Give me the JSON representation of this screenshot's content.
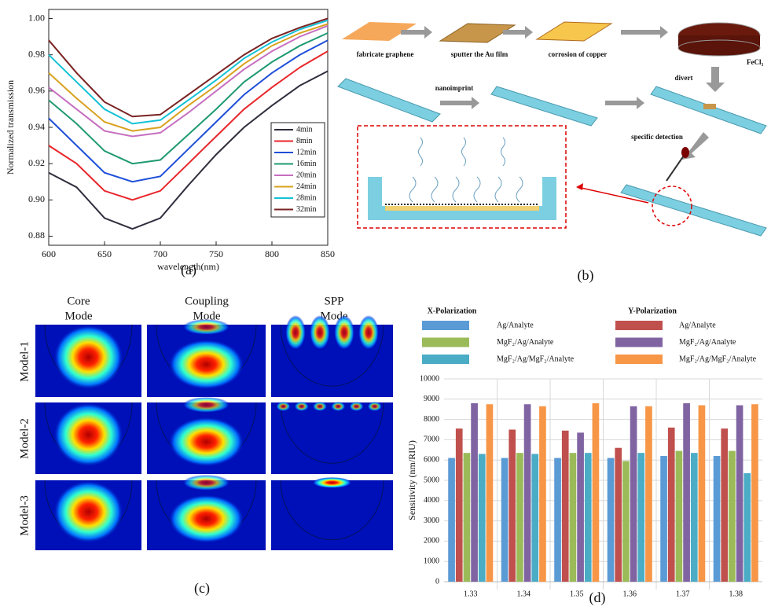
{
  "chart_data": [
    {
      "type": "line",
      "xlabel": "wavelength(nm)",
      "ylabel": "Normalized transmission",
      "x": [
        600,
        625,
        650,
        675,
        700,
        725,
        750,
        775,
        800,
        825,
        850
      ],
      "xlim": [
        600,
        850
      ],
      "xticks": [
        600,
        650,
        700,
        750,
        800,
        850
      ],
      "ylim": [
        0.875,
        1.005
      ],
      "yticks": [
        0.88,
        {
          "value": 0.9,
          "label": "0.90"
        },
        0.92,
        0.94,
        0.96,
        0.98,
        {
          "value": 1.0,
          "label": "1.00"
        }
      ],
      "series": [
        {
          "name": "4min",
          "color": "#2e2e3e",
          "values": [
            0.915,
            0.907,
            0.89,
            0.884,
            0.89,
            0.908,
            0.925,
            0.94,
            0.952,
            0.963,
            0.971
          ]
        },
        {
          "name": "8min",
          "color": "#e8262a",
          "values": [
            0.93,
            0.92,
            0.905,
            0.9,
            0.905,
            0.92,
            0.935,
            0.95,
            0.962,
            0.973,
            0.982
          ]
        },
        {
          "name": "12min",
          "color": "#1f4fd8",
          "values": [
            0.945,
            0.93,
            0.915,
            0.91,
            0.913,
            0.928,
            0.943,
            0.958,
            0.97,
            0.98,
            0.988
          ]
        },
        {
          "name": "16min",
          "color": "#1f9a72",
          "values": [
            0.955,
            0.942,
            0.927,
            0.92,
            0.922,
            0.936,
            0.95,
            0.965,
            0.976,
            0.985,
            0.992
          ]
        },
        {
          "name": "20min",
          "color": "#c66fc0",
          "values": [
            0.962,
            0.95,
            0.938,
            0.935,
            0.937,
            0.948,
            0.96,
            0.972,
            0.982,
            0.99,
            0.996
          ]
        },
        {
          "name": "24min",
          "color": "#d8a21e",
          "values": [
            0.97,
            0.956,
            0.943,
            0.938,
            0.94,
            0.952,
            0.963,
            0.975,
            0.985,
            0.992,
            0.997
          ]
        },
        {
          "name": "28min",
          "color": "#13c2d6",
          "values": [
            0.98,
            0.965,
            0.95,
            0.942,
            0.944,
            0.955,
            0.966,
            0.978,
            0.987,
            0.994,
            0.999
          ]
        },
        {
          "name": "32min",
          "color": "#7a2323",
          "values": [
            0.988,
            0.97,
            0.954,
            0.946,
            0.947,
            0.958,
            0.969,
            0.98,
            0.989,
            0.995,
            1.0
          ]
        }
      ]
    },
    {
      "type": "bar",
      "ylabel": "Sensitivity (nm/RIU)",
      "legend_titles": [
        "X-Polarization",
        "Y-Polarization"
      ],
      "categories": [
        "1.33",
        "1.34",
        "1.35",
        "1.36",
        "1.37",
        "1.38"
      ],
      "ylim": [
        0,
        10000
      ],
      "yticks": [
        0,
        1000,
        2000,
        3000,
        4000,
        5000,
        6000,
        7000,
        8000,
        9000,
        10000
      ],
      "grid": true,
      "series": [
        {
          "name": "Ag/Analyte",
          "color": "#5b9bd5",
          "values": [
            6100,
            6100,
            6100,
            6100,
            6200,
            6200
          ]
        },
        {
          "name": "Ag/Analyte",
          "color": "#c0504d",
          "values": [
            7550,
            7500,
            7450,
            6600,
            7600,
            7550
          ]
        },
        {
          "name": "MgF₂/Ag/Analyte",
          "color": "#9bbb59",
          "values": [
            6350,
            6350,
            6350,
            5950,
            6450,
            6450
          ]
        },
        {
          "name": "MgF₂/Ag/Analyte",
          "color": "#8064a2",
          "values": [
            8800,
            8750,
            7350,
            8650,
            8800,
            8700
          ]
        },
        {
          "name": "MgF₂/Ag/MgF₂/Analyte",
          "color": "#4bacc6",
          "values": [
            6300,
            6300,
            6350,
            6350,
            6350,
            5350
          ]
        },
        {
          "name": "MgF₂/Ag/MgF₂/Analyte",
          "color": "#f79646",
          "values": [
            8750,
            8650,
            8800,
            8650,
            8700,
            8750
          ]
        }
      ]
    }
  ],
  "diagram": {
    "steps": [
      "fabricate graphene",
      "sputter the Au film",
      "corrosion of copper"
    ],
    "reagent": "FeCl₃",
    "divert": "divert",
    "nanoimprint": "nanoimprint",
    "detection": "specific detection"
  },
  "modes": {
    "columns": [
      "Core",
      "Mode",
      "Coupling",
      "Mode",
      "SPP",
      "Mode"
    ],
    "rows": [
      "Model-1",
      "Model-2",
      "Model-3"
    ]
  },
  "panels": [
    "(a)",
    "(b)",
    "(c)",
    "(d)"
  ]
}
